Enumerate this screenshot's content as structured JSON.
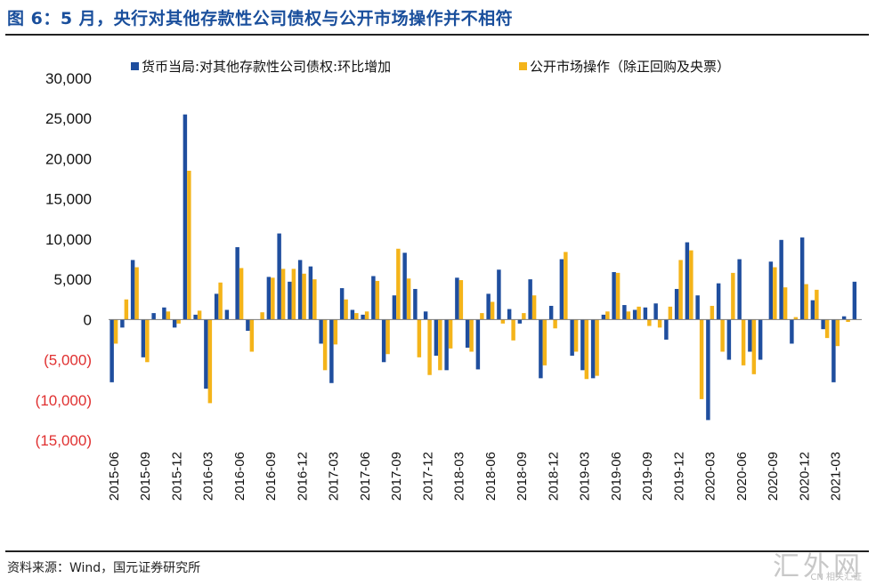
{
  "header": {
    "title": "图 6：5 月，央行对其他存款性公司债权与公开市场操作并不相符"
  },
  "footer": {
    "source": "资料来源：Wind，国元证券研究所"
  },
  "watermark": {
    "text": "汇外网",
    "sub": "CN 相关汇证"
  },
  "colors": {
    "series1": "#1f4e9e",
    "series2": "#f4b41a",
    "negative_tick": "#e03030"
  },
  "chart_data": {
    "type": "bar",
    "title": "",
    "ylim": [
      -15000,
      30000
    ],
    "yticks": [
      {
        "value": 30000,
        "label": "30,000"
      },
      {
        "value": 25000,
        "label": "25,000"
      },
      {
        "value": 20000,
        "label": "20,000"
      },
      {
        "value": 15000,
        "label": "15,000"
      },
      {
        "value": 10000,
        "label": "10,000"
      },
      {
        "value": 5000,
        "label": "5,000"
      },
      {
        "value": 0,
        "label": "0"
      },
      {
        "value": -5000,
        "label": "(5,000)"
      },
      {
        "value": -10000,
        "label": "(10,000)"
      },
      {
        "value": -15000,
        "label": "(15,000)"
      }
    ],
    "xtick_labels": [
      "2015-06",
      "2015-09",
      "2015-12",
      "2016-03",
      "2016-06",
      "2016-09",
      "2016-12",
      "2017-03",
      "2017-06",
      "2017-09",
      "2017-12",
      "2018-03",
      "2018-06",
      "2018-09",
      "2018-12",
      "2019-03",
      "2019-06",
      "2019-09",
      "2019-12",
      "2020-03",
      "2020-06",
      "2020-09",
      "2020-12",
      "2021-03"
    ],
    "categories": [
      "2015-06",
      "2015-07",
      "2015-08",
      "2015-09",
      "2015-10",
      "2015-11",
      "2015-12",
      "2016-01",
      "2016-02",
      "2016-03",
      "2016-04",
      "2016-05",
      "2016-06",
      "2016-07",
      "2016-08",
      "2016-09",
      "2016-10",
      "2016-11",
      "2016-12",
      "2017-01",
      "2017-02",
      "2017-03",
      "2017-04",
      "2017-05",
      "2017-06",
      "2017-07",
      "2017-08",
      "2017-09",
      "2017-10",
      "2017-11",
      "2017-12",
      "2018-01",
      "2018-02",
      "2018-03",
      "2018-04",
      "2018-05",
      "2018-06",
      "2018-07",
      "2018-08",
      "2018-09",
      "2018-10",
      "2018-11",
      "2018-12",
      "2019-01",
      "2019-02",
      "2019-03",
      "2019-04",
      "2019-05",
      "2019-06",
      "2019-07",
      "2019-08",
      "2019-09",
      "2019-10",
      "2019-11",
      "2019-12",
      "2020-01",
      "2020-02",
      "2020-03",
      "2020-04",
      "2020-05",
      "2020-06",
      "2020-07",
      "2020-08",
      "2020-09",
      "2020-10",
      "2020-11",
      "2020-12",
      "2021-01",
      "2021-02",
      "2021-03",
      "2021-04",
      "2021-05"
    ],
    "series": [
      {
        "name": "货币当局:对其他存款性公司债权:环比增加",
        "values": [
          -7800,
          -1000,
          7400,
          -4700,
          800,
          1500,
          -1000,
          25500,
          600,
          -8600,
          3200,
          1200,
          9000,
          -1400,
          0,
          5300,
          10700,
          4700,
          7400,
          6600,
          -3000,
          -7900,
          3900,
          1200,
          600,
          5400,
          -5300,
          3000,
          8300,
          3800,
          1000,
          -4500,
          -6300,
          5200,
          -3500,
          -6200,
          3200,
          6200,
          1300,
          -500,
          5000,
          -7300,
          1700,
          7500,
          -4500,
          -6300,
          -7300,
          600,
          5900,
          1800,
          1200,
          1500,
          2000,
          -2500,
          3800,
          9600,
          3000,
          -12500,
          4500,
          -5000,
          7500,
          -4000,
          -5000,
          7200,
          9900,
          -3000,
          10200,
          2400,
          -1200,
          -7800,
          400,
          4700
        ]
      },
      {
        "name": "公开市场操作（除正回购及央票）",
        "values": [
          -3000,
          2500,
          6500,
          -5300,
          0,
          1000,
          -500,
          18500,
          1100,
          -10400,
          4600,
          0,
          6400,
          -4000,
          900,
          5200,
          6300,
          6300,
          5700,
          5000,
          -6300,
          -3100,
          2500,
          800,
          1000,
          4800,
          -4300,
          8800,
          5100,
          -4700,
          -6900,
          -6300,
          -3600,
          4900,
          -4000,
          800,
          2200,
          -500,
          -2600,
          800,
          3000,
          -5700,
          -1100,
          8400,
          -4000,
          -7400,
          -7000,
          1000,
          5800,
          1000,
          1600,
          -800,
          -1000,
          1600,
          7400,
          8600,
          -9900,
          1700,
          -4000,
          5800,
          -5700,
          -6800,
          0,
          6500,
          4000,
          300,
          4400,
          3700,
          -2300,
          -3300,
          -300,
          0
        ]
      }
    ],
    "legend": "top"
  }
}
